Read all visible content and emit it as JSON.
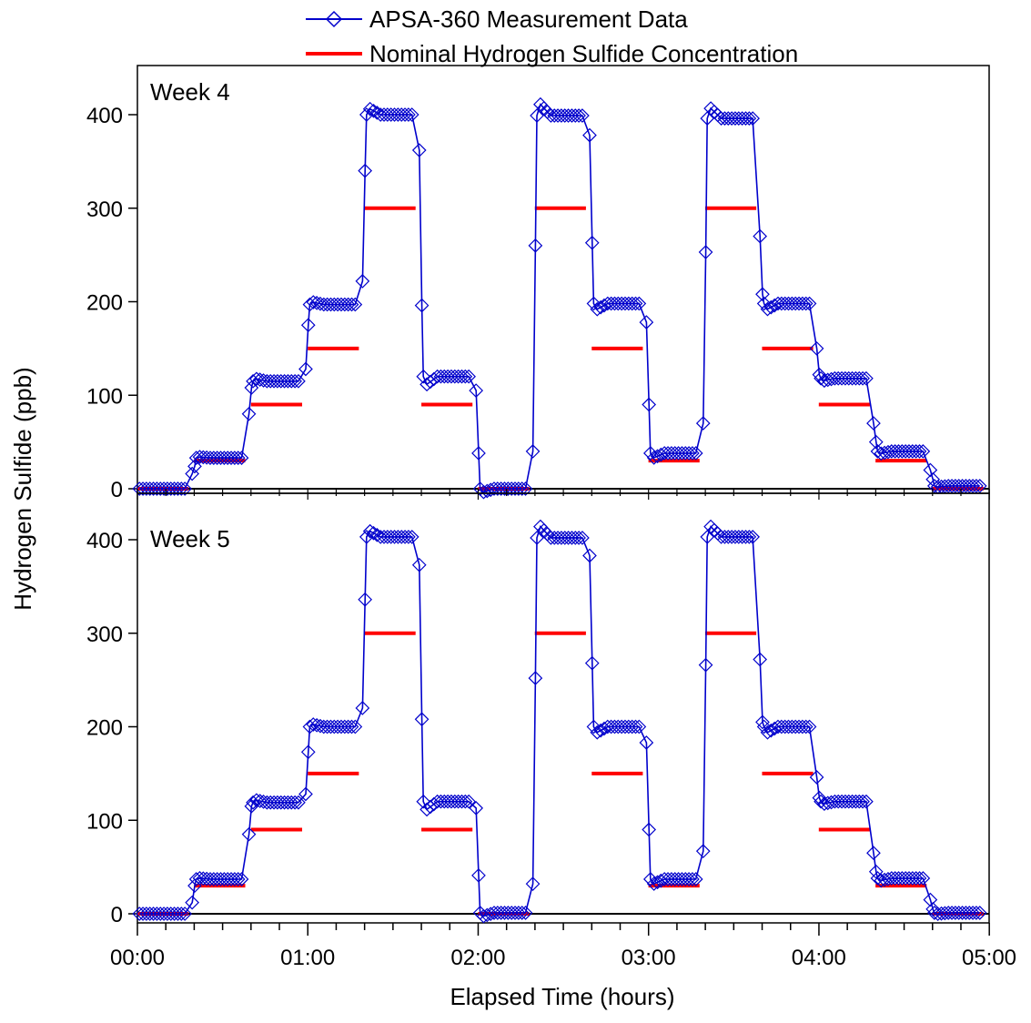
{
  "chart_data": {
    "type": "line",
    "legend": {
      "placement": "top",
      "entries": [
        {
          "label": "APSA-360 Measurement Data",
          "color": "#0000cc",
          "marker": "diamond"
        },
        {
          "label": "Nominal Hydrogen Sulfide Concentration",
          "color": "#ff0000",
          "marker": "none"
        }
      ]
    },
    "xlabel": "Elapsed Time (hours)",
    "ylabel": "Hydrogen Sulfide (ppb)",
    "xlim": [
      0,
      5
    ],
    "x_unit": "hours",
    "xtick_labels": [
      "00:00",
      "01:00",
      "02:00",
      "03:00",
      "04:00",
      "05:00"
    ],
    "xtick_values": [
      0,
      1,
      2,
      3,
      4,
      5
    ],
    "x_minor_step": 0.1667,
    "ylim": [
      -10,
      445
    ],
    "ytick_values": [
      0,
      100,
      200,
      300,
      400
    ],
    "ytick_labels": [
      "0",
      "100",
      "200",
      "300",
      "400"
    ],
    "grid": false,
    "panels": [
      {
        "label": "Week 4",
        "nominal": [
          {
            "x": [
              0.0,
              0.3
            ],
            "y": 0
          },
          {
            "x": [
              0.333,
              0.633
            ],
            "y": 30
          },
          {
            "x": [
              0.667,
              0.967
            ],
            "y": 90
          },
          {
            "x": [
              1.0,
              1.3
            ],
            "y": 150
          },
          {
            "x": [
              1.333,
              1.633
            ],
            "y": 300
          },
          {
            "x": [
              1.667,
              1.967
            ],
            "y": 90
          },
          {
            "x": [
              2.0,
              2.3
            ],
            "y": 0
          },
          {
            "x": [
              2.333,
              2.633
            ],
            "y": 300
          },
          {
            "x": [
              2.667,
              2.967
            ],
            "y": 150
          },
          {
            "x": [
              3.0,
              3.3
            ],
            "y": 30
          },
          {
            "x": [
              3.333,
              3.633
            ],
            "y": 300
          },
          {
            "x": [
              3.667,
              3.967
            ],
            "y": 150
          },
          {
            "x": [
              4.0,
              4.3
            ],
            "y": 90
          },
          {
            "x": [
              4.333,
              4.633
            ],
            "y": 30
          },
          {
            "x": [
              4.667,
              4.967
            ],
            "y": 0
          }
        ],
        "measured_levels": [
          0,
          33,
          115,
          197,
          400,
          120,
          0,
          399,
          198,
          38,
          396,
          198,
          118,
          40,
          3
        ],
        "measured_transitions": [
          [
            16,
            24
          ],
          [
            80,
            108
          ],
          [
            128,
            175
          ],
          [
            222,
            340
          ],
          [
            362,
            196
          ],
          [
            105,
            38
          ],
          [
            40,
            260
          ],
          [
            378,
            263
          ],
          [
            178,
            90
          ],
          [
            70,
            253
          ],
          [
            270,
            208
          ],
          [
            150,
            122
          ],
          [
            70,
            50
          ],
          [
            20,
            10
          ]
        ]
      },
      {
        "label": "Week 5",
        "nominal": [
          {
            "x": [
              0.0,
              0.3
            ],
            "y": 0
          },
          {
            "x": [
              0.333,
              0.633
            ],
            "y": 30
          },
          {
            "x": [
              0.667,
              0.967
            ],
            "y": 90
          },
          {
            "x": [
              1.0,
              1.3
            ],
            "y": 150
          },
          {
            "x": [
              1.333,
              1.633
            ],
            "y": 300
          },
          {
            "x": [
              1.667,
              1.967
            ],
            "y": 90
          },
          {
            "x": [
              2.0,
              2.3
            ],
            "y": 0
          },
          {
            "x": [
              2.333,
              2.633
            ],
            "y": 300
          },
          {
            "x": [
              2.667,
              2.967
            ],
            "y": 150
          },
          {
            "x": [
              3.0,
              3.3
            ],
            "y": 30
          },
          {
            "x": [
              3.333,
              3.633
            ],
            "y": 300
          },
          {
            "x": [
              3.667,
              3.967
            ],
            "y": 150
          },
          {
            "x": [
              4.0,
              4.3
            ],
            "y": 90
          },
          {
            "x": [
              4.333,
              4.633
            ],
            "y": 30
          },
          {
            "x": [
              4.667,
              4.967
            ],
            "y": 0
          }
        ],
        "measured_levels": [
          0,
          37,
          119,
          200,
          403,
          120,
          1,
          402,
          200,
          37,
          403,
          200,
          120,
          38,
          1
        ],
        "measured_transitions": [
          [
            12,
            30
          ],
          [
            85,
            115
          ],
          [
            128,
            173
          ],
          [
            220,
            336
          ],
          [
            373,
            208
          ],
          [
            113,
            41
          ],
          [
            32,
            252
          ],
          [
            383,
            268
          ],
          [
            183,
            90
          ],
          [
            67,
            266
          ],
          [
            272,
            205
          ],
          [
            146,
            124
          ],
          [
            65,
            45
          ],
          [
            15,
            5
          ]
        ]
      }
    ]
  }
}
